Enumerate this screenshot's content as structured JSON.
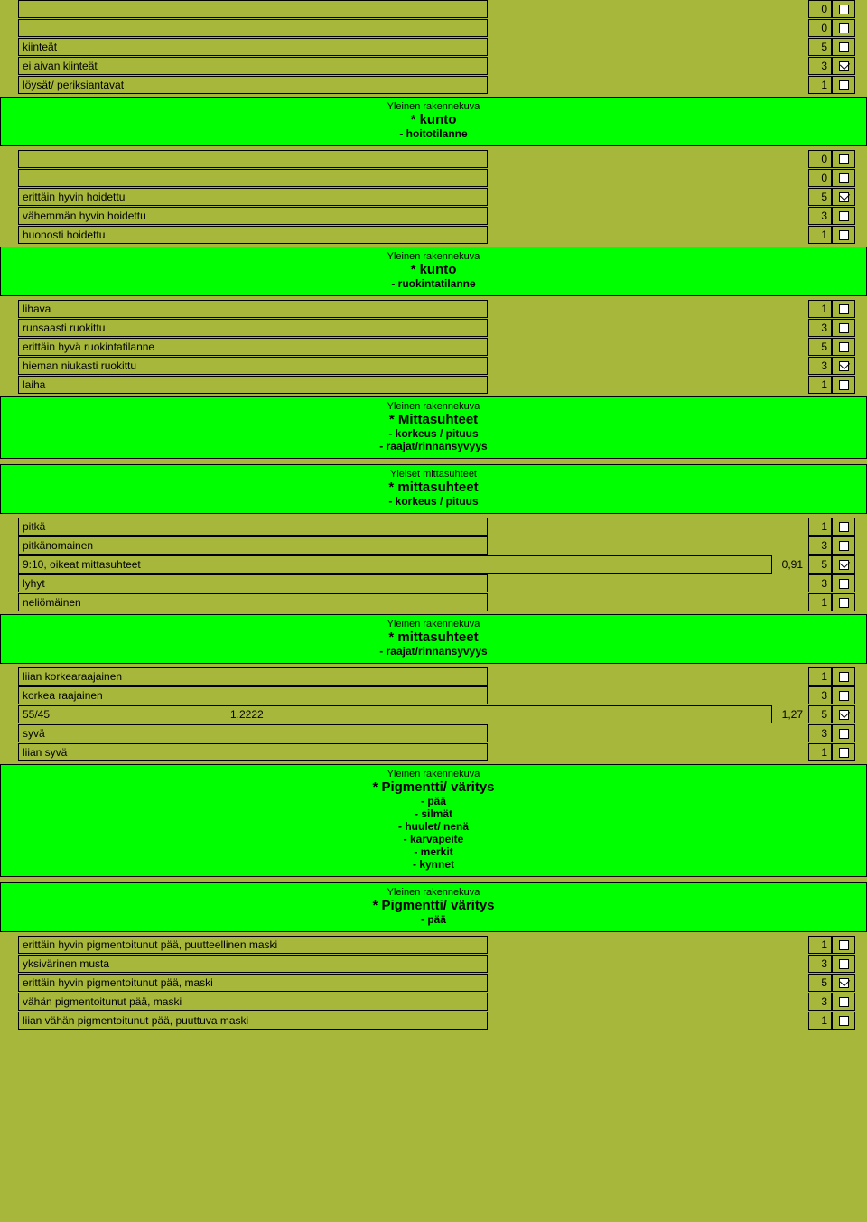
{
  "layout": {
    "label_width_narrow": 520,
    "label_width_wide": 835,
    "mid_gap_narrow": 315,
    "score_col_left": 895
  },
  "blocks": [
    {
      "rows": [
        {
          "label": "",
          "score": "0",
          "checked": false,
          "width": "narrow"
        },
        {
          "label": "",
          "score": "0",
          "checked": false,
          "width": "narrow"
        },
        {
          "label": "kiinteät",
          "score": "5",
          "checked": false,
          "width": "narrow"
        },
        {
          "label": "ei aivan kiinteät",
          "score": "3",
          "checked": true,
          "width": "narrow"
        },
        {
          "label": "löysät/ periksiantavat",
          "score": "1",
          "checked": false,
          "width": "narrow"
        }
      ]
    },
    {
      "header": {
        "sup": "Yleinen rakennekuva",
        "title": "* kunto",
        "subs": [
          "- hoitotilanne"
        ]
      },
      "rows": [
        {
          "label": "",
          "score": "0",
          "checked": false,
          "width": "narrow"
        },
        {
          "label": "",
          "score": "0",
          "checked": false,
          "width": "narrow"
        },
        {
          "label": "erittäin hyvin hoidettu",
          "score": "5",
          "checked": true,
          "width": "narrow"
        },
        {
          "label": "vähemmän hyvin hoidettu",
          "score": "3",
          "checked": false,
          "width": "narrow"
        },
        {
          "label": "huonosti hoidettu",
          "score": "1",
          "checked": false,
          "width": "narrow"
        }
      ]
    },
    {
      "header": {
        "sup": "Yleinen rakennekuva",
        "title": "* kunto",
        "subs": [
          "- ruokintatilanne"
        ]
      },
      "rows": [
        {
          "label": "lihava",
          "score": "1",
          "checked": false,
          "width": "narrow"
        },
        {
          "label": "runsaasti ruokittu",
          "score": "3",
          "checked": false,
          "width": "narrow"
        },
        {
          "label": "erittäin hyvä ruokintatilanne",
          "score": "5",
          "checked": false,
          "width": "narrow"
        },
        {
          "label": "hieman niukasti ruokittu",
          "score": "3",
          "checked": true,
          "width": "narrow"
        },
        {
          "label": "laiha",
          "score": "1",
          "checked": false,
          "width": "narrow"
        }
      ]
    },
    {
      "header": {
        "sup": "Yleinen rakennekuva",
        "title": "* Mittasuhteet",
        "subs": [
          "- korkeus / pituus",
          "- raajat/rinnansyvyys"
        ]
      },
      "rows": []
    },
    {
      "header": {
        "sup": "Yleiset mittasuhteet",
        "title": "* mittasuhteet",
        "subs": [
          "- korkeus / pituus"
        ]
      },
      "rows": [
        {
          "label": "pitkä",
          "score": "1",
          "checked": false,
          "width": "narrow"
        },
        {
          "label": "pitkänomainen",
          "score": "3",
          "checked": false,
          "width": "narrow"
        },
        {
          "label": "9:10, oikeat mittasuhteet",
          "score": "5",
          "checked": true,
          "width": "wide",
          "mid": "0,91"
        },
        {
          "label": "lyhyt",
          "score": "3",
          "checked": false,
          "width": "narrow"
        },
        {
          "label": "neliömäinen",
          "score": "1",
          "checked": false,
          "width": "narrow"
        }
      ]
    },
    {
      "header": {
        "sup": "Yleinen rakennekuva",
        "title": "* mittasuhteet",
        "subs": [
          "- raajat/rinnansyvyys"
        ]
      },
      "rows": [
        {
          "label": "liian korkearaajainen",
          "score": "1",
          "checked": false,
          "width": "narrow"
        },
        {
          "label": "korkea raajainen",
          "score": "3",
          "checked": false,
          "width": "narrow"
        },
        {
          "label": "55/45",
          "label2": "1,2222",
          "score": "5",
          "checked": true,
          "width": "wide",
          "mid": "1,27"
        },
        {
          "label": "syvä",
          "score": "3",
          "checked": false,
          "width": "narrow"
        },
        {
          "label": "liian syvä",
          "score": "1",
          "checked": false,
          "width": "narrow"
        }
      ]
    },
    {
      "header": {
        "sup": "Yleinen rakennekuva",
        "title": "* Pigmentti/ väritys",
        "subs": [
          "- pää",
          "- silmät",
          "- huulet/ nenä",
          "- karvapeite",
          "- merkit",
          "- kynnet"
        ]
      },
      "rows": []
    },
    {
      "header": {
        "sup": "Yleinen rakennekuva",
        "title": "* Pigmentti/ väritys",
        "subs": [
          "- pää"
        ]
      },
      "rows": [
        {
          "label": "erittäin hyvin pigmentoitunut pää, puutteellinen maski",
          "score": "1",
          "checked": false,
          "width": "narrow"
        },
        {
          "label": "yksivärinen musta",
          "score": "3",
          "checked": false,
          "width": "narrow"
        },
        {
          "label": "erittäin hyvin pigmentoitunut pää, maski",
          "score": "5",
          "checked": true,
          "width": "narrow"
        },
        {
          "label": "vähän pigmentoitunut pää, maski",
          "score": "3",
          "checked": false,
          "width": "narrow"
        },
        {
          "label": "liian vähän pigmentoitunut pää, puuttuva maski",
          "score": "1",
          "checked": false,
          "width": "narrow"
        }
      ]
    }
  ]
}
